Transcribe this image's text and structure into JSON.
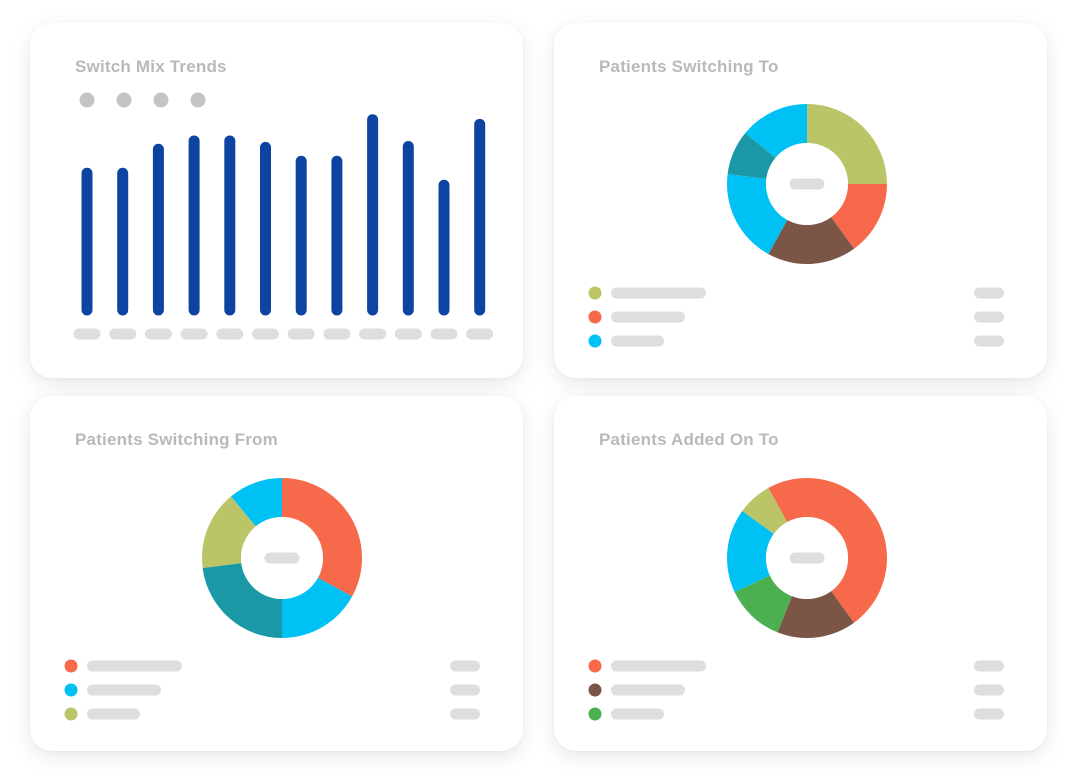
{
  "colors": {
    "bar": "#0d44a1",
    "placeholder": "#dedede",
    "legend_dot_gray": "#c4c4c4",
    "olive": "#bcc468",
    "coral": "#f7694b",
    "sky": "#00c1f3",
    "teal": "#1a98a5",
    "brown": "#7b5546",
    "green": "#4caf50"
  },
  "chart_data": [
    {
      "type": "bar",
      "title": "Switch Mix Trends",
      "categories": [
        "",
        "",
        "",
        "",
        "",
        "",
        "",
        "",
        "",
        "",
        "",
        ""
      ],
      "values": [
        148,
        148,
        174,
        183,
        183,
        176,
        161,
        161,
        206,
        177,
        135,
        201
      ],
      "ylim": [
        0,
        210
      ],
      "legend_placeholders": 4,
      "grid": false
    },
    {
      "type": "pie",
      "title": "Patients Switching To",
      "donut": true,
      "slices": [
        {
          "color": "#bcc468",
          "value": 25
        },
        {
          "color": "#f7694b",
          "value": 15
        },
        {
          "color": "#7b5546",
          "value": 18
        },
        {
          "color": "#00c1f3",
          "value": 19
        },
        {
          "color": "#1a98a5",
          "value": 9
        },
        {
          "color": "#00c1f3",
          "value": 14
        }
      ],
      "legend": [
        {
          "color": "#bcc468"
        },
        {
          "color": "#f7694b"
        },
        {
          "color": "#00c1f3"
        }
      ]
    },
    {
      "type": "pie",
      "title": "Patients Switching From",
      "donut": true,
      "slices": [
        {
          "color": "#f7694b",
          "value": 33
        },
        {
          "color": "#00c1f3",
          "value": 17
        },
        {
          "color": "#1a98a5",
          "value": 23
        },
        {
          "color": "#bcc468",
          "value": 16
        },
        {
          "color": "#00c1f3",
          "value": 11
        }
      ],
      "legend": [
        {
          "color": "#f7694b"
        },
        {
          "color": "#00c1f3"
        },
        {
          "color": "#bcc468"
        }
      ]
    },
    {
      "type": "pie",
      "title": "Patients Added On To",
      "donut": true,
      "slices": [
        {
          "color": "#f7694b",
          "value": 40
        },
        {
          "color": "#7b5546",
          "value": 16
        },
        {
          "color": "#4caf50",
          "value": 12
        },
        {
          "color": "#00c1f3",
          "value": 17
        },
        {
          "color": "#bcc468",
          "value": 7
        },
        {
          "color": "#f7694b",
          "value": 8
        }
      ],
      "legend": [
        {
          "color": "#f7694b"
        },
        {
          "color": "#7b5546"
        },
        {
          "color": "#4caf50"
        }
      ]
    }
  ]
}
